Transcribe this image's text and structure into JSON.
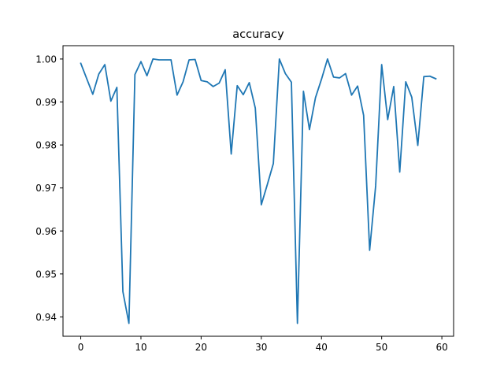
{
  "chart_data": {
    "type": "line",
    "title": "accuracy",
    "xlabel": "",
    "ylabel": "",
    "xlim": [
      -2.95,
      61.95
    ],
    "ylim": [
      0.9355,
      1.0031
    ],
    "xticks": [
      0,
      10,
      20,
      30,
      40,
      50,
      60
    ],
    "xtick_labels": [
      "0",
      "10",
      "20",
      "30",
      "40",
      "50",
      "60"
    ],
    "yticks": [
      0.94,
      0.95,
      0.96,
      0.97,
      0.98,
      0.99,
      1.0
    ],
    "ytick_labels": [
      "0.94",
      "0.95",
      "0.96",
      "0.97",
      "0.98",
      "0.99",
      "1.00"
    ],
    "grid": false,
    "line_color": "#1f77b4",
    "series": [
      {
        "x": [
          0,
          1,
          2,
          3,
          4,
          5,
          6,
          7,
          8,
          9,
          10,
          11,
          12,
          13,
          14,
          15,
          16,
          17,
          18,
          19,
          20,
          21,
          22,
          23,
          24,
          25,
          26,
          27,
          28,
          29,
          30,
          31,
          32,
          33,
          34,
          35,
          36,
          37,
          38,
          39,
          40,
          41,
          42,
          43,
          44,
          45,
          46,
          47,
          48,
          49,
          50,
          51,
          52,
          53,
          54,
          55,
          56,
          57,
          58,
          59
        ],
        "values": [
          0.999,
          0.9954,
          0.9918,
          0.9965,
          0.9987,
          0.9902,
          0.9934,
          0.9459,
          0.9385,
          0.9964,
          0.9994,
          0.9961,
          1.0,
          0.9998,
          0.9998,
          0.9998,
          0.9916,
          0.9947,
          0.9998,
          0.9999,
          0.995,
          0.9947,
          0.9936,
          0.9944,
          0.9975,
          0.9779,
          0.9938,
          0.9917,
          0.9945,
          0.9886,
          0.9661,
          0.9708,
          0.9757,
          1.0,
          0.9966,
          0.9946,
          0.9385,
          0.9925,
          0.9836,
          0.991,
          0.9953,
          1.0,
          0.9958,
          0.9956,
          0.9966,
          0.9916,
          0.9937,
          0.9869,
          0.9555,
          0.9705,
          0.9987,
          0.9859,
          0.9936,
          0.9737,
          0.9947,
          0.9911,
          0.9799,
          0.9959,
          0.996,
          0.9954
        ]
      }
    ]
  }
}
